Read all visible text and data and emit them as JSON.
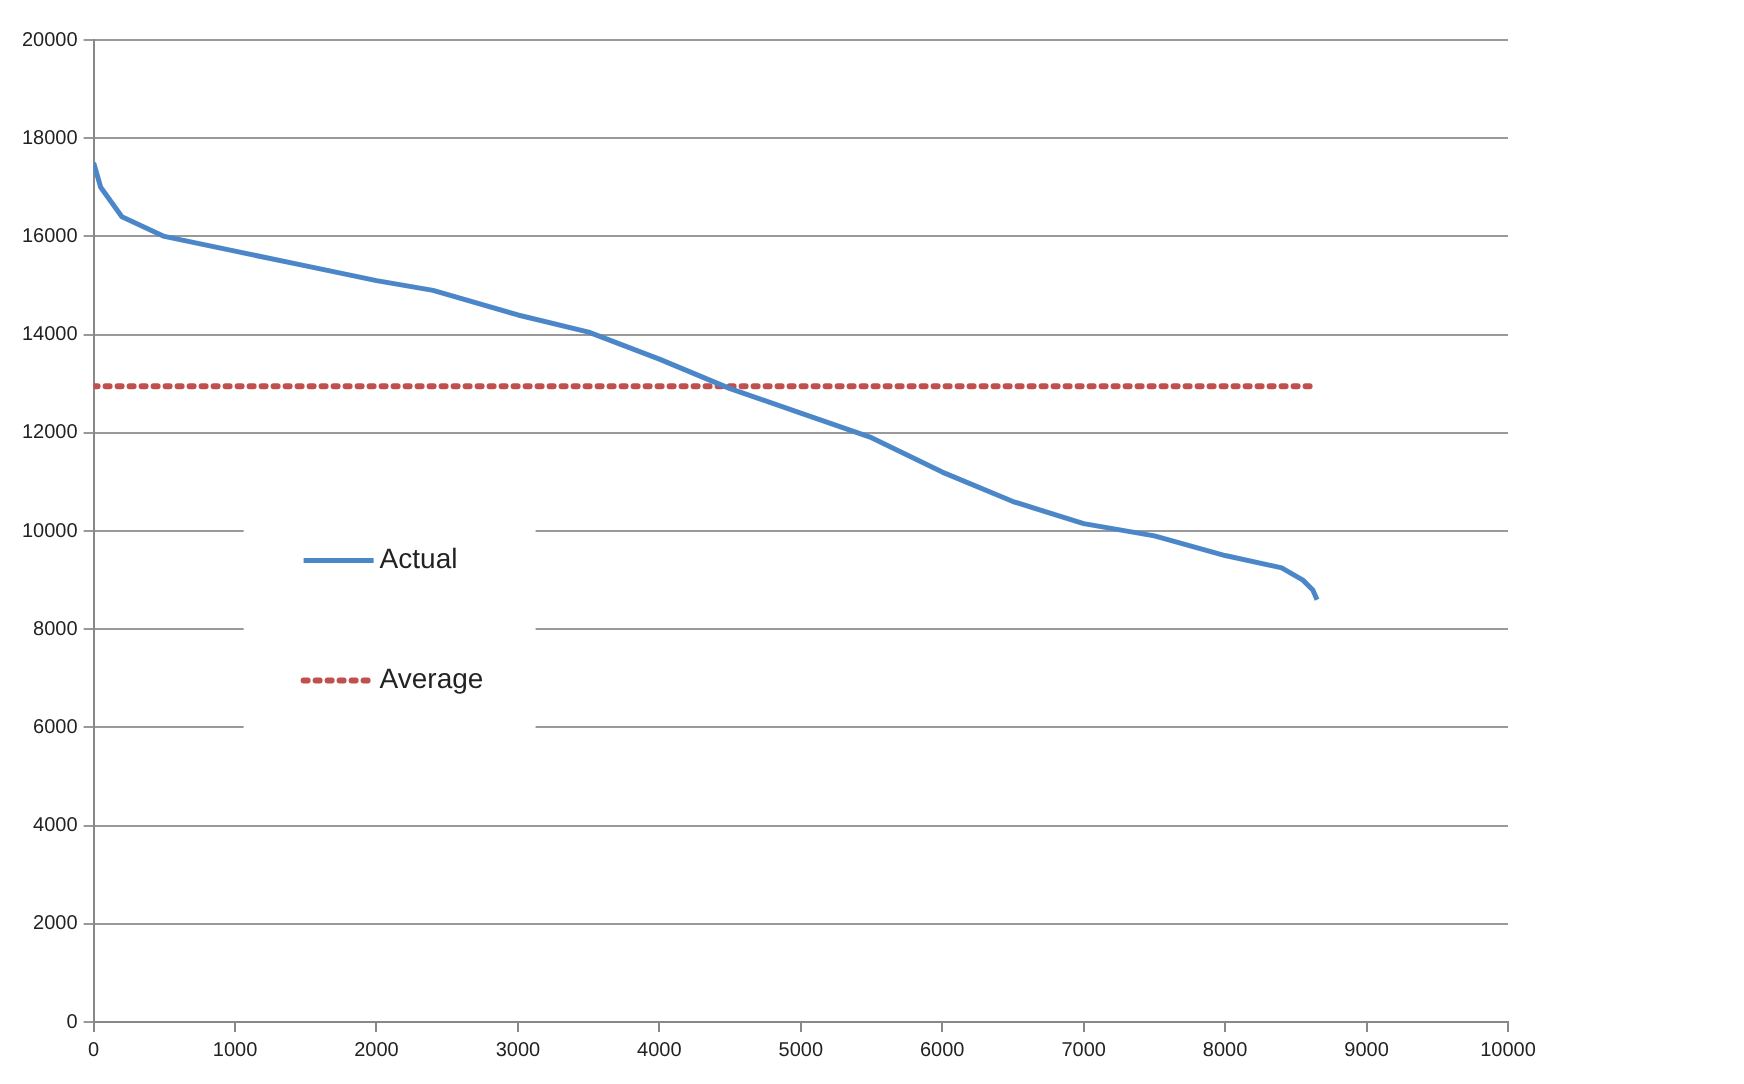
{
  "chart_data": {
    "type": "line",
    "xlim": [
      0,
      10000
    ],
    "xticks": [
      0,
      1000,
      2000,
      3000,
      4000,
      5000,
      6000,
      7000,
      8000,
      9000,
      10000
    ],
    "ylim": [
      0,
      20000
    ],
    "yticks": [
      0,
      2000,
      4000,
      6000,
      8000,
      10000,
      12000,
      14000,
      16000,
      18000,
      20000
    ],
    "grid": "y",
    "legend": "left",
    "marker": "none",
    "series": [
      {
        "name": "Actual",
        "color": "#4a86c8",
        "line_style": "solid",
        "x": [
          0,
          50,
          200,
          500,
          1000,
          1500,
          2000,
          2400,
          3000,
          3500,
          4000,
          4500,
          5000,
          5500,
          6000,
          6500,
          7000,
          7500,
          8000,
          8400,
          8550,
          8620,
          8650
        ],
        "values": [
          17500,
          17000,
          16400,
          16000,
          15700,
          15400,
          15100,
          14900,
          14400,
          14050,
          13500,
          12900,
          12400,
          11900,
          11200,
          10600,
          10150,
          9900,
          9500,
          9250,
          9000,
          8800,
          8600
        ]
      },
      {
        "name": "Average",
        "color": "#c0504d",
        "line_style": "dotted",
        "x": [
          0,
          8650
        ],
        "values": [
          12950,
          12950
        ]
      }
    ]
  }
}
